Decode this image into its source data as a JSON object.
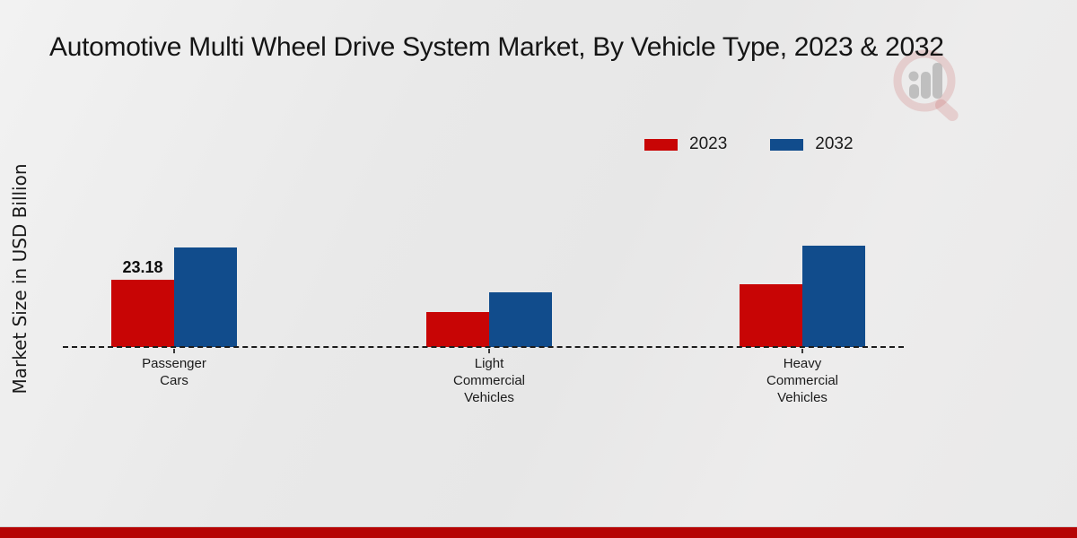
{
  "header": {
    "title": "Automotive Multi Wheel Drive System Market, By Vehicle Type, 2023 & 2032"
  },
  "legend": {
    "items": [
      {
        "label": "2023",
        "color": "#c80505"
      },
      {
        "label": "2032",
        "color": "#114c8c"
      }
    ]
  },
  "chart_data": {
    "type": "bar",
    "title": "Automotive Multi Wheel Drive System Market, By Vehicle Type, 2023 & 2032",
    "xlabel": "",
    "ylabel": "Market Size in USD Billion",
    "categories": [
      "Passenger\nCars",
      "Light\nCommercial\nVehicles",
      "Heavy\nCommercial\nVehicles"
    ],
    "series": [
      {
        "name": "2023",
        "color": "#c80505",
        "values": [
          23.18,
          12.1,
          21.6
        ]
      },
      {
        "name": "2032",
        "color": "#114c8c",
        "values": [
          34.3,
          18.9,
          34.9
        ]
      }
    ],
    "value_labels": [
      {
        "series": 0,
        "category": 0,
        "text": "23.18"
      }
    ],
    "ylim": [
      0,
      40
    ],
    "grid": false,
    "baseline_style": "dashed",
    "legend_position": "top-right"
  },
  "colors": {
    "background": "#e9e9e9",
    "footer_bar": "#b50404",
    "text": "#1a1a1a"
  },
  "footer": {},
  "watermark": {
    "description": "magnifier-with-bar-chart logo watermark"
  }
}
